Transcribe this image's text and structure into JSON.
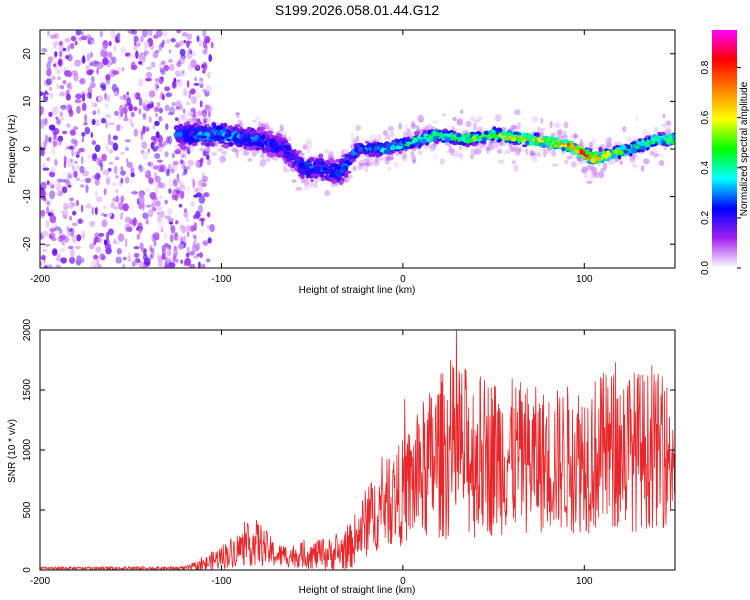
{
  "title": "S199.2026.058.01.44.G12",
  "chart_data": [
    {
      "type": "heatmap",
      "name": "spectrogram",
      "xlabel": "Height of straight line (km)",
      "ylabel": "Frequency (Hz)",
      "xlim": [
        -200,
        150
      ],
      "ylim": [
        -25,
        25
      ],
      "xticks": [
        -200,
        -100,
        0,
        100
      ],
      "yticks": [
        20,
        10,
        0,
        -10,
        -20
      ],
      "colorbar": {
        "label": "Normalized spectral amplitude",
        "range": [
          0,
          0.95
        ],
        "ticks": [
          "0.0",
          "0.2",
          "0.4",
          "0.6",
          "0.8"
        ],
        "tick_values": [
          0,
          0.2,
          0.4,
          0.6,
          0.8
        ],
        "colormap": [
          "#ffffff",
          "#a020f0",
          "#0000ff",
          "#00ffff",
          "#00ff00",
          "#ffff00",
          "#ff8000",
          "#ff0000",
          "#ff00ff"
        ]
      },
      "ridge": {
        "x": [
          -120,
          -100,
          -80,
          -65,
          -55,
          -45,
          -35,
          -25,
          -10,
          0,
          10,
          20,
          35,
          50,
          70,
          90,
          105,
          115,
          125,
          140,
          150
        ],
        "freq": [
          3,
          3,
          2,
          0,
          -4,
          -4,
          -5,
          0,
          0,
          1,
          2,
          3,
          2,
          3,
          2,
          1,
          -2,
          -1,
          0,
          2,
          2
        ],
        "amp": [
          0.3,
          0.35,
          0.3,
          0.25,
          0.3,
          0.3,
          0.3,
          0.35,
          0.4,
          0.45,
          0.5,
          0.5,
          0.55,
          0.6,
          0.7,
          0.75,
          0.85,
          0.6,
          0.5,
          0.5,
          0.55
        ]
      },
      "noise_region": {
        "x": [
          -200,
          -120
        ],
        "freq": [
          -25,
          25
        ]
      }
    },
    {
      "type": "line",
      "name": "snr",
      "xlabel": "Height of straight line (km)",
      "ylabel": "SNR (10 * v/v)",
      "xlim": [
        -200,
        150
      ],
      "ylim": [
        0,
        2000
      ],
      "xticks": [
        -200,
        -100,
        0,
        100
      ],
      "yticks": [
        0,
        500,
        1000,
        1500,
        2000
      ],
      "color": "#e8262a",
      "envelope": {
        "x": [
          -200,
          -120,
          -110,
          -90,
          -80,
          -70,
          -60,
          -40,
          -30,
          -20,
          -10,
          0,
          10,
          20,
          30,
          40,
          60,
          80,
          100,
          120,
          140,
          150
        ],
        "mean": [
          15,
          15,
          40,
          180,
          230,
          120,
          120,
          130,
          170,
          400,
          550,
          650,
          800,
          950,
          1000,
          950,
          950,
          900,
          950,
          1000,
          1000,
          950
        ],
        "amp": [
          10,
          15,
          60,
          150,
          200,
          100,
          100,
          140,
          180,
          300,
          350,
          450,
          600,
          700,
          750,
          700,
          650,
          600,
          650,
          700,
          650,
          600
        ]
      }
    }
  ]
}
